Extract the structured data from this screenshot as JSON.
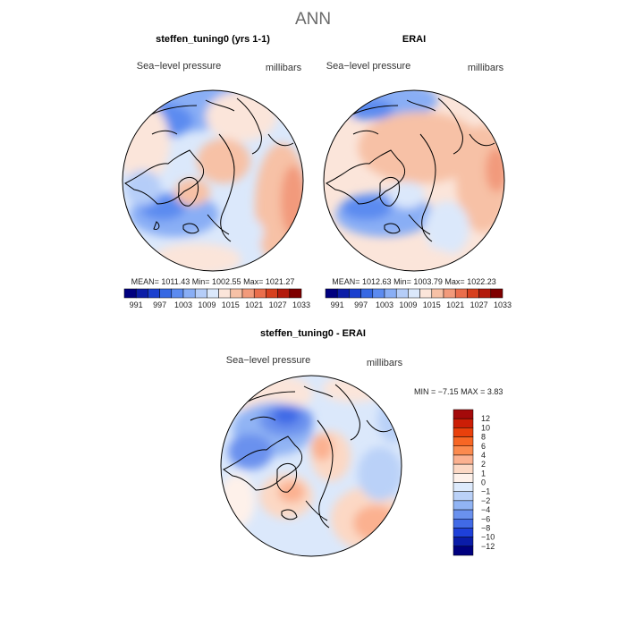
{
  "page_title": "ANN",
  "panels": [
    {
      "title": "steffen_tuning0 (yrs 1-1)",
      "field_label": "Sea−level pressure",
      "units": "millibars",
      "stats": {
        "mean_label": "MEAN=",
        "mean": "1011.43",
        "min_label": "Min=",
        "min": "1002.55",
        "max_label": "Max=",
        "max": "1021.27"
      }
    },
    {
      "title": "ERAI",
      "field_label": "Sea−level pressure",
      "units": "millibars",
      "stats": {
        "mean_label": "MEAN=",
        "mean": "1012.63",
        "min_label": "Min=",
        "min": "1003.79",
        "max_label": "Max=",
        "max": "1022.23"
      }
    }
  ],
  "diff_panel": {
    "title": "steffen_tuning0 - ERAI",
    "field_label": "Sea−level pressure",
    "units": "millibars",
    "stats": {
      "min_label": "MIN =",
      "min": "−7.15",
      "max_label": "MAX =",
      "max": "3.83"
    }
  },
  "chart_data": [
    {
      "type": "heatmap",
      "title": "steffen_tuning0 (yrs 1-1)",
      "projection": "north polar stereographic",
      "field": "Sea-level pressure",
      "units": "millibars",
      "mean": 1011.43,
      "min": 1002.55,
      "max": 1021.27,
      "colorbar_levels": [
        "991",
        "997",
        "1003",
        "1009",
        "1015",
        "1021",
        "1027",
        "1033"
      ],
      "colorbar_colors": [
        "#00007f",
        "#0c1ea7",
        "#1b40cf",
        "#3668e3",
        "#5c8bf0",
        "#89aef5",
        "#b5cdf8",
        "#dbe8fb",
        "#fbe5da",
        "#f7c1a6",
        "#f29a7b",
        "#ea6e4c",
        "#d7401e",
        "#b31a0c",
        "#7f0000"
      ]
    },
    {
      "type": "heatmap",
      "title": "ERAI",
      "projection": "north polar stereographic",
      "field": "Sea-level pressure",
      "units": "millibars",
      "mean": 1012.63,
      "min": 1003.79,
      "max": 1022.23,
      "colorbar_levels": [
        "991",
        "997",
        "1003",
        "1009",
        "1015",
        "1021",
        "1027",
        "1033"
      ],
      "colorbar_colors": [
        "#00007f",
        "#0c1ea7",
        "#1b40cf",
        "#3668e3",
        "#5c8bf0",
        "#89aef5",
        "#b5cdf8",
        "#dbe8fb",
        "#fbe5da",
        "#f7c1a6",
        "#f29a7b",
        "#ea6e4c",
        "#d7401e",
        "#b31a0c",
        "#7f0000"
      ]
    },
    {
      "type": "heatmap",
      "title": "steffen_tuning0 - ERAI",
      "projection": "north polar stereographic",
      "field": "Sea-level pressure",
      "units": "millibars",
      "min": -7.15,
      "max": 3.83,
      "colorbar_levels": [
        "12",
        "10",
        "8",
        "6",
        "4",
        "2",
        "1",
        "0",
        "−1",
        "−2",
        "−4",
        "−6",
        "−8",
        "−10",
        "−12"
      ],
      "colorbar_colors": [
        "#a40a0a",
        "#cc1e06",
        "#e9400c",
        "#f76624",
        "#fb8a4e",
        "#fbb190",
        "#fcd8c4",
        "#fef1ea",
        "#ddeafc",
        "#bad1f8",
        "#91b4f4",
        "#6a91ee",
        "#416ae6",
        "#1e40d9",
        "#0a1ca8",
        "#00007f"
      ]
    }
  ]
}
